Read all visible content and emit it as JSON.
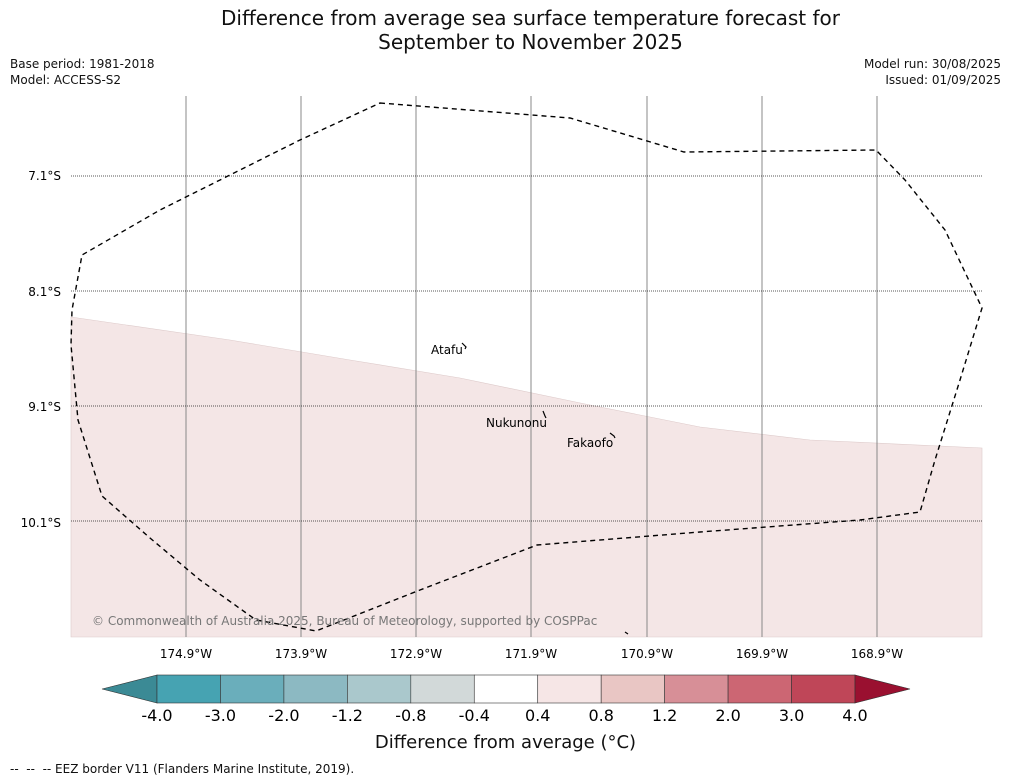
{
  "header": {
    "title_line1": "Difference from average sea surface temperature forecast for",
    "title_line2": "September to November 2025",
    "base_period": "Base period: 1981-2018",
    "model": "Model: ACCESS-S2",
    "model_run": "Model run: 30/08/2025",
    "issued": "Issued: 01/09/2025"
  },
  "map": {
    "lat_labels": [
      "7.1°S",
      "8.1°S",
      "9.1°S",
      "10.1°S"
    ],
    "lon_labels": [
      "174.9°W",
      "173.9°W",
      "172.9°W",
      "171.9°W",
      "170.9°W",
      "169.9°W",
      "168.9°W"
    ],
    "places": [
      {
        "name": "Atafu"
      },
      {
        "name": "Nukunonu"
      },
      {
        "name": "Fakaofo"
      }
    ],
    "shaded_fill": "#f4e6e6",
    "copyright": "© Commonwealth of Australia 2025, Bureau of Meteorology, supported by COSPPac"
  },
  "colorbar": {
    "ticks": [
      "-4.0",
      "-3.0",
      "-2.0",
      "-1.2",
      "-0.8",
      "-0.4",
      "0.4",
      "0.8",
      "1.2",
      "2.0",
      "3.0",
      "4.0"
    ],
    "colors": [
      "#3b8a95",
      "#46a3b2",
      "#6aaebb",
      "#8cb9c2",
      "#aac8cc",
      "#d2d9d9",
      "#ffffff",
      "#f6e6e6",
      "#e9c6c4",
      "#d78f97",
      "#cc6673",
      "#bf4658",
      "#b0203e",
      "#9a1030"
    ],
    "label": "Difference from average (°C)"
  },
  "footer": {
    "legend_text": "-- EEZ border V11 (Flanders Marine Institute, 2019)."
  }
}
